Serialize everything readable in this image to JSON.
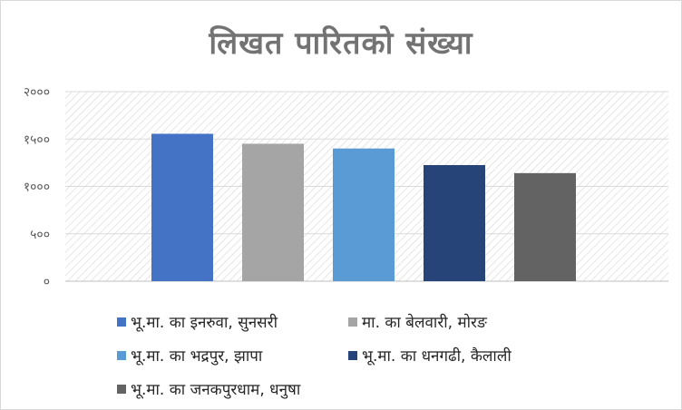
{
  "chart_data": {
    "type": "bar",
    "title": "लिखत पारितको संख्या",
    "xlabel": "",
    "ylabel": "",
    "ylim": [
      0,
      2000
    ],
    "yticks": [
      "०",
      "५००",
      "१०००",
      "१५००",
      "२०००"
    ],
    "grid": true,
    "legend_position": "bottom",
    "series": [
      {
        "name": "भू.मा. का इनरुवा, सुनसरी",
        "value": 1555,
        "color": "#4472c4"
      },
      {
        "name": "मा. का बेलवारी, मोरङ",
        "value": 1450,
        "color": "#a5a5a5"
      },
      {
        "name": "भू.मा. का भद्रपुर, झापा",
        "value": 1400,
        "color": "#5b9bd5"
      },
      {
        "name": "भू.मा. का धनगढी, कैलाली",
        "value": 1225,
        "color": "#264478"
      },
      {
        "name": "भू.मा. का जनकपुरधाम, धनुषा",
        "value": 1140,
        "color": "#636363"
      }
    ]
  }
}
